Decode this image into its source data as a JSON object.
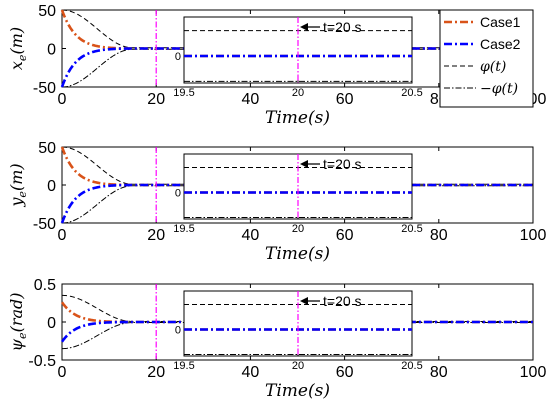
{
  "colors": {
    "case1": "#d95319",
    "case2": "#0000ff",
    "bound": "#000000",
    "marker": "#ff00ff",
    "ref": "#000000"
  },
  "chart_data": [
    {
      "type": "line",
      "ylabel_main": "x",
      "ylabel_sub": "e",
      "ylabel_unit": "(m)",
      "xlabel": "Time(s)",
      "xlim": [
        0,
        100
      ],
      "ylim": [
        -50,
        50
      ],
      "xticks": [
        "0",
        "20",
        "40",
        "60",
        "80",
        "100"
      ],
      "yticks": [
        "50",
        "0",
        "-50"
      ],
      "initial": {
        "case1": 50,
        "case2": -50,
        "phi": 50
      },
      "settle_time": 15,
      "marker_x": 20,
      "inset": {
        "xticks": [
          "19.5",
          "20",
          "20.5"
        ],
        "ytick": "0",
        "annotation": "t=20 s",
        "bound": 12
      },
      "legend": {
        "position": "top-right",
        "items": [
          {
            "key": "case1",
            "label": "Case1"
          },
          {
            "key": "case2",
            "label": "Case2"
          },
          {
            "key": "phi",
            "label": "φ(t)"
          },
          {
            "key": "neg_phi",
            "label": "−φ(t)"
          }
        ]
      }
    },
    {
      "type": "line",
      "ylabel_main": "y",
      "ylabel_sub": "e",
      "ylabel_unit": "(m)",
      "xlabel": "Time(s)",
      "xlim": [
        0,
        100
      ],
      "ylim": [
        -50,
        50
      ],
      "xticks": [
        "0",
        "20",
        "40",
        "60",
        "80",
        "100"
      ],
      "yticks": [
        "50",
        "0",
        "-50"
      ],
      "initial": {
        "case1": 50,
        "case2": -50,
        "phi": 50
      },
      "settle_time": 15,
      "marker_x": 20,
      "inset": {
        "xticks": [
          "19.5",
          "20",
          "20.5"
        ],
        "ytick": "0",
        "annotation": "t=20 s",
        "bound": 12
      }
    },
    {
      "type": "line",
      "ylabel_main": "ψ",
      "ylabel_sub": "e",
      "ylabel_unit": "(rad)",
      "xlabel": "Time(s)",
      "xlim": [
        0,
        100
      ],
      "ylim": [
        -0.5,
        0.5
      ],
      "xticks": [
        "0",
        "20",
        "40",
        "60",
        "80",
        "100"
      ],
      "yticks": [
        "0.5",
        "0",
        "-0.5"
      ],
      "initial": {
        "case1": 0.26,
        "case2": -0.26,
        "phi": 0.35
      },
      "settle_time": 15,
      "marker_x": 20,
      "inset": {
        "xticks": [
          "19.5",
          "20",
          "20.5"
        ],
        "ytick": "0",
        "annotation": "t=20 s",
        "bound": 0.12
      }
    }
  ]
}
